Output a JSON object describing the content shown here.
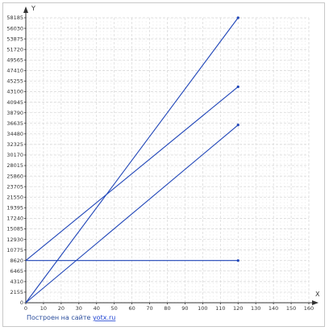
{
  "chart_data": {
    "type": "line",
    "xlabel": "X",
    "ylabel": "Y",
    "xlim": [
      0,
      160
    ],
    "ylim": [
      0,
      58185
    ],
    "x_ticks": [
      0,
      10,
      20,
      30,
      40,
      50,
      60,
      70,
      80,
      90,
      100,
      110,
      120,
      130,
      140,
      150,
      160
    ],
    "y_ticks": [
      0,
      2155,
      4310,
      6465,
      8620,
      10775,
      12930,
      15085,
      17240,
      19395,
      21550,
      23705,
      25860,
      28015,
      30170,
      32325,
      34480,
      36635,
      38790,
      40945,
      43100,
      45255,
      47410,
      49565,
      51720,
      53875,
      56030,
      58185
    ],
    "grid": true,
    "series": [
      {
        "color": "#1f45b8",
        "points": [
          [
            0,
            0
          ],
          [
            120,
            58185
          ]
        ]
      },
      {
        "color": "#1f45b8",
        "points": [
          [
            0,
            8620
          ],
          [
            120,
            44100
          ]
        ]
      },
      {
        "color": "#1f45b8",
        "points": [
          [
            0,
            0
          ],
          [
            120,
            36300
          ]
        ]
      },
      {
        "color": "#1f45b8",
        "points": [
          [
            0,
            8620
          ],
          [
            120,
            8620
          ]
        ]
      }
    ]
  },
  "credit": {
    "prefix": "Построен на сайте ",
    "link": "yotx.ru"
  }
}
